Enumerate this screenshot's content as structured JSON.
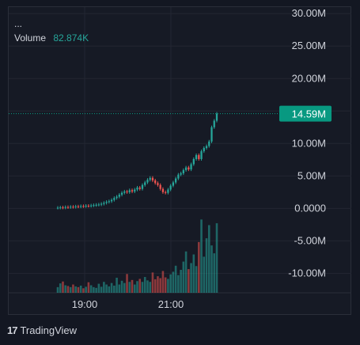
{
  "legend": {
    "dots": "...",
    "volume_label": "Volume",
    "volume_value": "82.874K"
  },
  "brand": {
    "logo_text": "17",
    "name": "TradingView"
  },
  "colors": {
    "up": "#26a69a",
    "down": "#ef5350",
    "accent": "#089981",
    "grid": "#232632",
    "axis_text": "#b2b5be"
  },
  "chart_data": {
    "type": "candlestick",
    "title": "",
    "xlabel": "",
    "ylabel": "",
    "ylim": [
      -13,
      31
    ],
    "price_axis_ticks": [
      "30.00M",
      "25.00M",
      "20.00M",
      "15.00M",
      "10.00M",
      "5.00M",
      "0.0000",
      "-5.00M",
      "-10.00M"
    ],
    "price_axis_values": [
      30,
      25,
      20,
      15,
      10,
      5,
      0,
      -5,
      -10
    ],
    "time_axis_ticks": [
      "19:00",
      "21:00"
    ],
    "time_axis_positions": [
      19.0,
      21.0
    ],
    "x_start_hour": 18.05,
    "x_end_hour": 21.0,
    "last_price_label": "14.59M",
    "last_price_value": 14.59,
    "grid": true,
    "price_series": [
      0.1,
      0.15,
      0.12,
      0.2,
      0.18,
      0.25,
      0.22,
      0.3,
      0.28,
      0.35,
      0.33,
      0.4,
      0.38,
      0.45,
      0.5,
      0.55,
      0.6,
      0.7,
      0.85,
      1.0,
      1.1,
      1.3,
      1.6,
      1.8,
      2.1,
      2.4,
      2.6,
      2.5,
      2.8,
      2.6,
      2.9,
      3.2,
      3.0,
      3.6,
      4.0,
      4.4,
      4.7,
      4.3,
      3.9,
      3.6,
      3.0,
      2.5,
      2.4,
      2.9,
      3.5,
      4.0,
      4.6,
      5.2,
      5.4,
      5.9,
      6.3,
      6.0,
      6.8,
      7.6,
      8.2,
      7.6,
      8.8,
      9.3,
      9.6,
      10.3,
      12.5,
      13.5,
      14.59
    ],
    "volume_series": [
      1.5,
      2.5,
      3.0,
      2.0,
      1.8,
      1.5,
      2.2,
      1.7,
      1.5,
      1.9,
      1.2,
      1.6,
      2.8,
      2.0,
      1.5,
      1.3,
      2.4,
      1.6,
      2.9,
      2.2,
      1.7,
      2.6,
      1.9,
      4.0,
      2.2,
      3.2,
      2.6,
      5.0,
      2.9,
      3.4,
      2.2,
      3.1,
      3.7,
      2.9,
      4.2,
      3.3,
      2.9,
      5.4,
      3.6,
      4.4,
      3.9,
      5.8,
      4.1,
      3.7,
      4.9,
      5.6,
      7.2,
      4.7,
      6.1,
      8.3,
      11.0,
      6.3,
      7.9,
      10.2,
      7.1,
      13.5,
      19.5,
      9.6,
      14.5,
      18.0,
      12.6,
      10.5,
      18.5
    ]
  }
}
